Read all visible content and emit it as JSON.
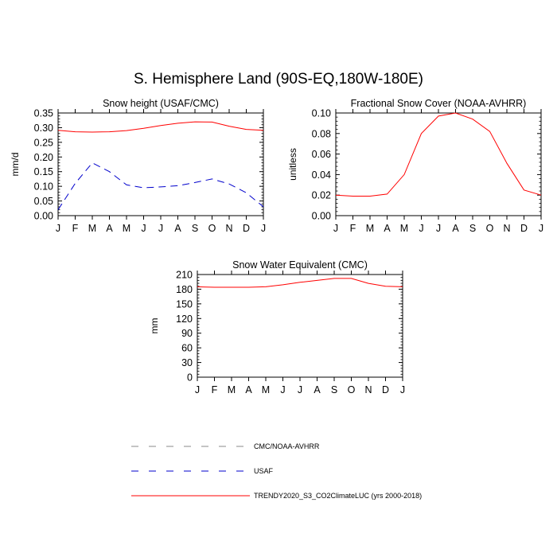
{
  "figure": {
    "title": "S. Hemisphere Land (90S-EQ,180W-180E)"
  },
  "chart_data": [
    {
      "type": "line",
      "title": "Snow height (USAF/CMC)",
      "xlabel": "",
      "ylabel": "mm/d",
      "categories": [
        "J",
        "F",
        "M",
        "A",
        "M",
        "J",
        "J",
        "A",
        "S",
        "O",
        "N",
        "D",
        "J"
      ],
      "ylim": [
        0,
        0.35
      ],
      "yticks": [
        "0.00",
        "0.05",
        "0.10",
        "0.15",
        "0.20",
        "0.25",
        "0.30",
        "0.35"
      ],
      "series": [
        {
          "name": "TRENDY2020_S3_CO2ClimateLUC (yrs 2000-2018)",
          "color": "#ff0000",
          "dash": "solid",
          "values": [
            0.291,
            0.286,
            0.285,
            0.286,
            0.29,
            0.298,
            0.307,
            0.315,
            0.32,
            0.319,
            0.305,
            0.294,
            0.291
          ]
        },
        {
          "name": "USAF",
          "color": "#0000cc",
          "dash": "dashed",
          "values": [
            0.02,
            0.11,
            0.18,
            0.15,
            0.105,
            0.095,
            0.098,
            0.102,
            0.113,
            0.125,
            0.108,
            0.078,
            0.03
          ]
        }
      ]
    },
    {
      "type": "line",
      "title": "Fractional Snow Cover (NOAA-AVHRR)",
      "xlabel": "",
      "ylabel": "unitless",
      "categories": [
        "J",
        "F",
        "M",
        "A",
        "M",
        "J",
        "J",
        "A",
        "S",
        "O",
        "N",
        "D",
        "J"
      ],
      "ylim": [
        0,
        0.1
      ],
      "yticks": [
        "0.00",
        "0.02",
        "0.04",
        "0.06",
        "0.08",
        "0.10"
      ],
      "series": [
        {
          "name": "TRENDY2020_S3_CO2ClimateLUC (yrs 2000-2018)",
          "color": "#ff0000",
          "dash": "solid",
          "values": [
            0.02,
            0.019,
            0.019,
            0.021,
            0.04,
            0.08,
            0.097,
            0.1,
            0.094,
            0.082,
            0.051,
            0.025,
            0.02
          ]
        }
      ]
    },
    {
      "type": "line",
      "title": "Snow Water Equivalent (CMC)",
      "xlabel": "",
      "ylabel": "mm",
      "categories": [
        "J",
        "F",
        "M",
        "A",
        "M",
        "J",
        "J",
        "A",
        "S",
        "O",
        "N",
        "D",
        "J"
      ],
      "ylim": [
        0,
        210
      ],
      "yticks": [
        "0",
        "30",
        "60",
        "90",
        "120",
        "150",
        "180",
        "210"
      ],
      "series": [
        {
          "name": "TRENDY2020_S3_CO2ClimateLUC (yrs 2000-2018)",
          "color": "#ff0000",
          "dash": "solid",
          "values": [
            185,
            184,
            184,
            184,
            185,
            189,
            194,
            198,
            202,
            202,
            192,
            186,
            185
          ]
        }
      ]
    }
  ],
  "legend": {
    "items": [
      {
        "label": "CMC/NOAA-AVHRR",
        "color": "#888888",
        "dash": "dashed"
      },
      {
        "label": "USAF",
        "color": "#0000cc",
        "dash": "dashed"
      },
      {
        "label": "TRENDY2020_S3_CO2ClimateLUC (yrs 2000-2018)",
        "color": "#ff0000",
        "dash": "solid"
      }
    ]
  }
}
